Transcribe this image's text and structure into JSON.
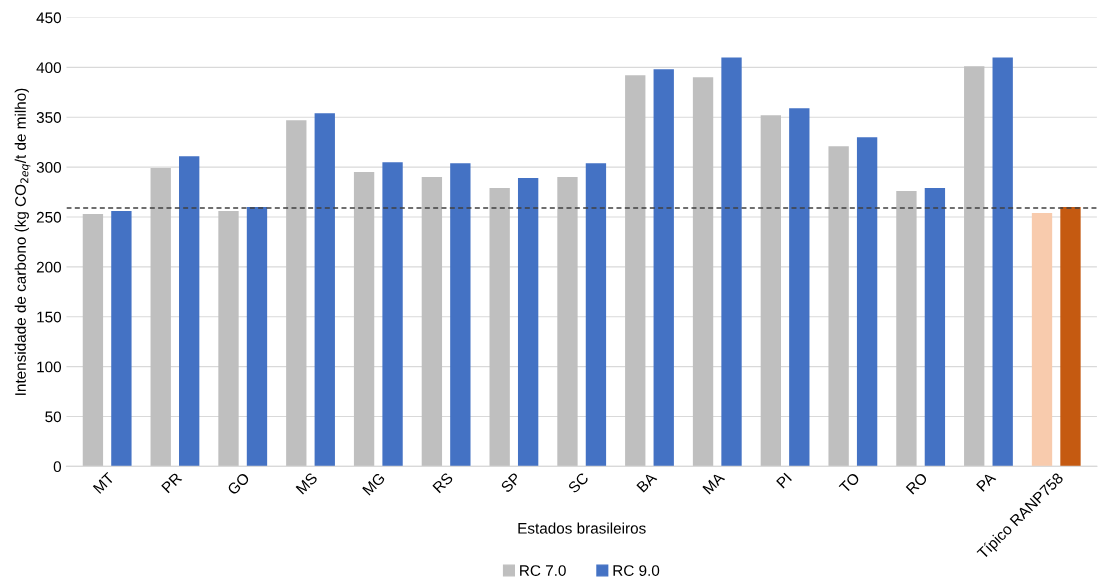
{
  "chart_data": {
    "type": "bar",
    "xlabel": "Estados brasileiros",
    "ylabel": "Intensidade de carbono (kg CO$_{2eq}$/t de milho)",
    "categories": [
      "MT",
      "PR",
      "GO",
      "MS",
      "MG",
      "RS",
      "SP",
      "SC",
      "BA",
      "MA",
      "PI",
      "TO",
      "RO",
      "PA",
      "Típico RANP758"
    ],
    "series": [
      {
        "name": "RC 7.0",
        "color": "#bfbfbf",
        "colors": [
          "#bfbfbf",
          "#bfbfbf",
          "#bfbfbf",
          "#bfbfbf",
          "#bfbfbf",
          "#bfbfbf",
          "#bfbfbf",
          "#bfbfbf",
          "#bfbfbf",
          "#bfbfbf",
          "#bfbfbf",
          "#bfbfbf",
          "#bfbfbf",
          "#bfbfbf",
          "#f8cbad"
        ],
        "values": [
          253,
          299,
          256,
          347,
          295,
          290,
          279,
          290,
          392,
          390,
          352,
          321,
          276,
          401,
          254
        ]
      },
      {
        "name": "RC 9.0",
        "color": "#4472c4",
        "colors": [
          "#4472c4",
          "#4472c4",
          "#4472c4",
          "#4472c4",
          "#4472c4",
          "#4472c4",
          "#4472c4",
          "#4472c4",
          "#4472c4",
          "#4472c4",
          "#4472c4",
          "#4472c4",
          "#4472c4",
          "#4472c4",
          "#c55a11"
        ],
        "values": [
          256,
          311,
          260,
          354,
          305,
          304,
          289,
          304,
          398,
          410,
          359,
          330,
          279,
          410,
          260
        ]
      }
    ],
    "ylim": [
      0,
      450
    ],
    "yticks": [
      0,
      50,
      100,
      150,
      200,
      250,
      300,
      350,
      400,
      450
    ],
    "grid": "y",
    "legend": "bottom",
    "ref_lines": [
      {
        "axis": "y",
        "value": 259,
        "color": "#404040",
        "line_style": "dashed"
      }
    ]
  }
}
